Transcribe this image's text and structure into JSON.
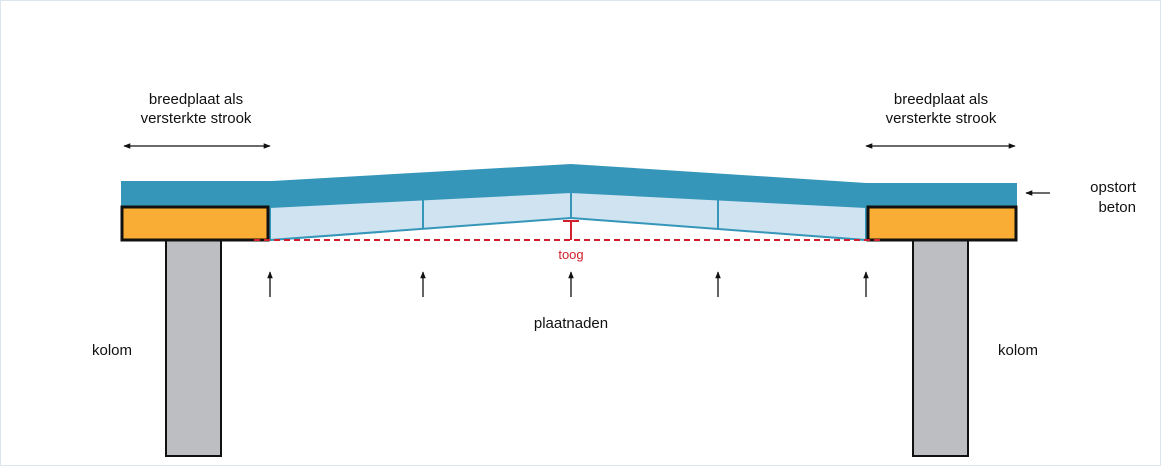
{
  "labels": {
    "left_strip_line1": "breedplaat als",
    "left_strip_line2": "versterkte strook",
    "right_strip_line1": "breedplaat als",
    "right_strip_line2": "versterkte strook",
    "topping": "opstort",
    "topping_line2": "beton",
    "camber": "toog",
    "joints": "plaatnaden",
    "left_column": "kolom",
    "right_column": "kolom"
  },
  "colors": {
    "topping": "#3596b9",
    "slab": "#cfe3f0",
    "slab_lines": "#3596b9",
    "strip": "#f9ad34",
    "column": "#bdbec1",
    "outline": "#111111",
    "camber": "#d0202e",
    "frame": "#dde6ec"
  },
  "icons": {
    "dimension_arrow": "double-headed-arrow",
    "pointer_arrow": "left-arrow",
    "joint_marker": "up-arrow"
  }
}
